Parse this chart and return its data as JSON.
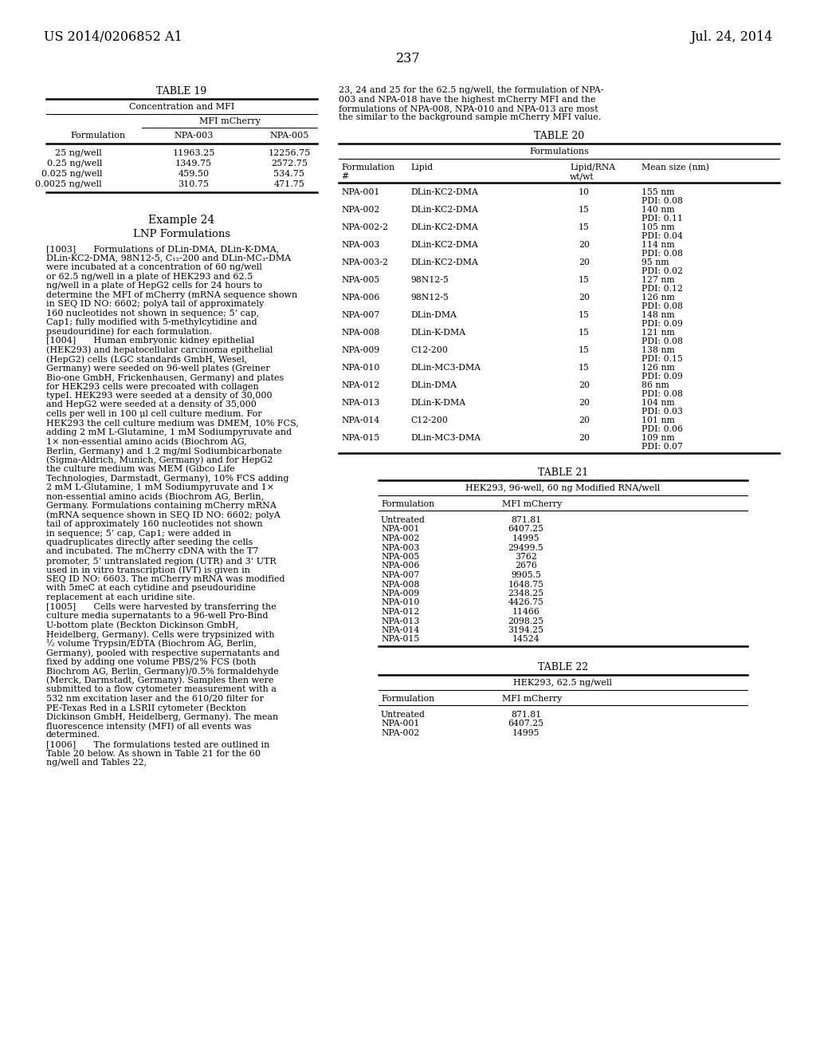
{
  "header_left": "US 2014/0206852 A1",
  "header_right": "Jul. 24, 2014",
  "page_number": "237",
  "table19": {
    "title": "TABLE 19",
    "subtitle": "Concentration and MFI",
    "subheader": "MFI mCherry",
    "col_headers": [
      "Formulation",
      "NPA-003",
      "NPA-005"
    ],
    "rows": [
      [
        "25 ng/well",
        "11963.25",
        "12256.75"
      ],
      [
        "0.25 ng/well",
        "1349.75",
        "2572.75"
      ],
      [
        "0.025 ng/well",
        "459.50",
        "534.75"
      ],
      [
        "0.0025 ng/well",
        "310.75",
        "471.75"
      ]
    ]
  },
  "example24_title": "Example 24",
  "example24_subtitle": "LNP Formulations",
  "body_paragraphs": [
    "[1003]  Formulations of DLin-DMA, DLin-K-DMA, DLin-KC2-DMA, 98N12-5, C₁₂-200 and DLin-MC₃-DMA were incubated at a concentration of 60 ng/well or 62.5 ng/well in a plate of HEK293 and 62.5 ng/well in a plate of HepG2 cells for 24 hours to determine the MFI of mCherry (mRNA sequence shown in SEQ ID NO: 6602; polyA tail of approximately 160 nucleotides not shown in sequence; 5’ cap, Cap1; fully modified with 5-methylcytidine and pseudouridine) for each formulation.",
    "[1004]  Human embryonic kidney epithelial (HEK293) and hepatocellular carcinoma epithelial (HepG2) cells (LGC standards GmbH, Wesel, Germany) were seeded on 96-well plates (Greiner Bio-one GmbH, Frickenhausen, Germany) and plates for HEK293 cells were precoated with collagen typeI. HEK293 were seeded at a density of 30,000 and HepG2 were seeded at a density of 35,000 cells per well in 100 μl cell culture medium. For HEK293 the cell culture medium was DMEM, 10% FCS, adding 2 mM L-Glutamine, 1 mM Sodiumpyruvate and 1× non-essential amino acids (Biochrom AG, Berlin, Germany) and 1.2 mg/ml Sodiumbicarbonate (Sigma-Aldrich, Munich, Germany) and for HepG2 the culture medium was MEM (Gibco Life Technologies, Darmstadt, Germany), 10% FCS adding 2 mM L-Glutamine, 1 mM Sodiumpyruvate and 1× non-essential amino acids (Biochrom AG, Berlin, Germany. Formulations containing mCherry mRNA (mRNA sequence shown in SEQ ID NO: 6602; polyA tail of approximately 160 nucleotides not shown in sequence; 5’ cap, Cap1; were added in quadruplicates directly after seeding the cells and incubated. The mCherry cDNA with the T7 promoter, 5’ untranslated region (UTR) and 3’ UTR used in in vitro transcription (IVT) is given in SEQ ID NO: 6603. The mCherry mRNA was modified with 5meC at each cytidine and pseudouridine replacement at each uridine site.",
    "[1005]  Cells were harvested by transferring the culture media supernatants to a 96-well Pro-Bind U-bottom plate (Beckton Dickinson GmbH, Heidelberg, Germany). Cells were trypsinized with ½ volume Trypsin/EDTA (Biochrom AG, Berlin, Germany), pooled with respective supernatants and fixed by adding one volume PBS/2% FCS (both Biochrom AG, Berlin, Germany)/0.5% formaldehyde (Merck, Darmstadt, Germany). Samples then were submitted to a flow cytometer measurement with a 532 nm excitation laser and the 610/20 filter for PE-Texas Red in a LSRII cytometer (Beckton Dickinson GmbH, Heidelberg, Germany). The mean fluorescence intensity (MFI) of all events was determined.",
    "[1006]  The formulations tested are outlined in Table 20 below. As shown in Table 21 for the 60 ng/well and Tables 22,"
  ],
  "right_text_lines": [
    "23, 24 and 25 for the 62.5 ng/well, the formulation of NPA-",
    "003 and NPA-018 have the highest mCherry MFI and the",
    "formulations of NPA-008, NPA-010 and NPA-013 are most",
    "the similar to the background sample mCherry MFI value."
  ],
  "table20": {
    "title": "TABLE 20",
    "subtitle": "Formulations",
    "rows": [
      [
        "NPA-001",
        "DLin-KC2-DMA",
        "10",
        "155 nm",
        "PDI: 0.08"
      ],
      [
        "NPA-002",
        "DLin-KC2-DMA",
        "15",
        "140 nm",
        "PDI: 0.11"
      ],
      [
        "NPA-002-2",
        "DLin-KC2-DMA",
        "15",
        "105 nm",
        "PDI: 0.04"
      ],
      [
        "NPA-003",
        "DLin-KC2-DMA",
        "20",
        "114 nm",
        "PDI: 0.08"
      ],
      [
        "NPA-003-2",
        "DLin-KC2-DMA",
        "20",
        "95 nm",
        "PDI: 0.02"
      ],
      [
        "NPA-005",
        "98N12-5",
        "15",
        "127 nm",
        "PDI: 0.12"
      ],
      [
        "NPA-006",
        "98N12-5",
        "20",
        "126 nm",
        "PDI: 0.08"
      ],
      [
        "NPA-007",
        "DLin-DMA",
        "15",
        "148 nm",
        "PDI: 0.09"
      ],
      [
        "NPA-008",
        "DLin-K-DMA",
        "15",
        "121 nm",
        "PDI: 0.08"
      ],
      [
        "NPA-009",
        "C12-200",
        "15",
        "138 nm",
        "PDI: 0.15"
      ],
      [
        "NPA-010",
        "DLin-MC3-DMA",
        "15",
        "126 nm",
        "PDI: 0.09"
      ],
      [
        "NPA-012",
        "DLin-DMA",
        "20",
        "86 nm",
        "PDI: 0.08"
      ],
      [
        "NPA-013",
        "DLin-K-DMA",
        "20",
        "104 nm",
        "PDI: 0.03"
      ],
      [
        "NPA-014",
        "C12-200",
        "20",
        "101 nm",
        "PDI: 0.06"
      ],
      [
        "NPA-015",
        "DLin-MC3-DMA",
        "20",
        "109 nm",
        "PDI: 0.07"
      ]
    ]
  },
  "table21": {
    "title": "TABLE 21",
    "subtitle": "HEK293, 96-well, 60 ng Modified RNA/well",
    "rows": [
      [
        "Untreated",
        "871.81"
      ],
      [
        "NPA-001",
        "6407.25"
      ],
      [
        "NPA-002",
        "14995"
      ],
      [
        "NPA-003",
        "29499.5"
      ],
      [
        "NPA-005",
        "3762"
      ],
      [
        "NPA-006",
        "2676"
      ],
      [
        "NPA-007",
        "9905.5"
      ],
      [
        "NPA-008",
        "1648.75"
      ],
      [
        "NPA-009",
        "2348.25"
      ],
      [
        "NPA-010",
        "4426.75"
      ],
      [
        "NPA-012",
        "11466"
      ],
      [
        "NPA-013",
        "2098.25"
      ],
      [
        "NPA-014",
        "3194.25"
      ],
      [
        "NPA-015",
        "14524"
      ]
    ]
  },
  "table22": {
    "title": "TABLE 22",
    "subtitle": "HEK293, 62.5 ng/well",
    "rows": [
      [
        "Untreated",
        "871.81"
      ],
      [
        "NPA-001",
        "6407.25"
      ],
      [
        "NPA-002",
        "14995"
      ]
    ]
  }
}
